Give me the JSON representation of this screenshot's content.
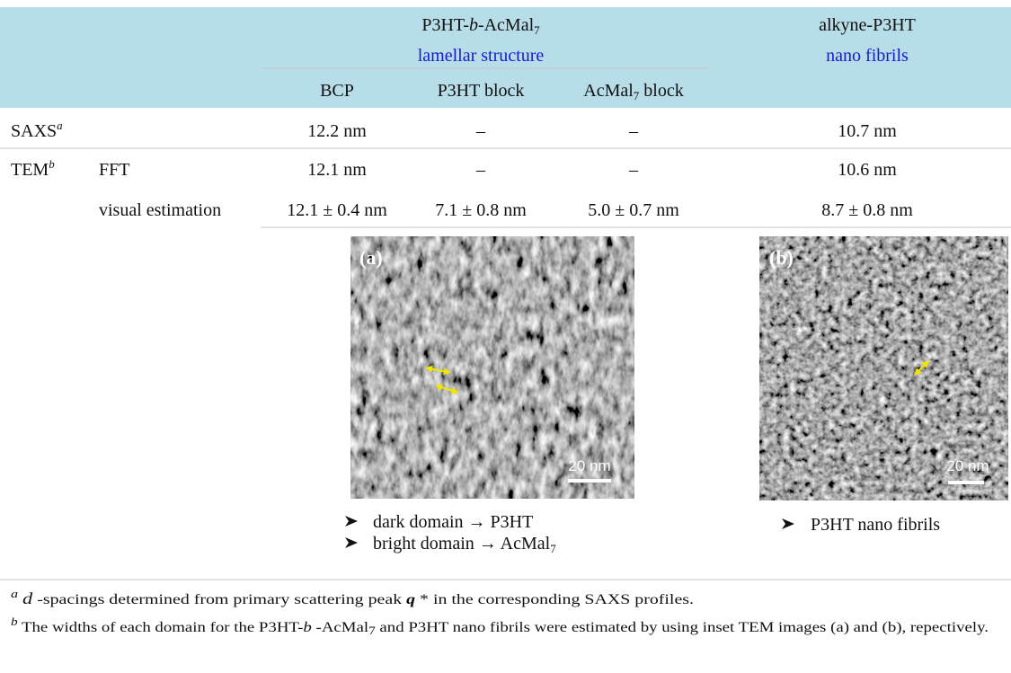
{
  "header": {
    "group_a": {
      "title": [
        "P3HT-",
        "b",
        "-AcMal",
        "7"
      ],
      "subtitle": "lamellar structure",
      "columns": [
        [
          "BCP"
        ],
        [
          "P3HT block"
        ],
        [
          "AcMal",
          "7",
          " block"
        ]
      ]
    },
    "group_b": {
      "title": "alkyne-P3HT",
      "subtitle": "nano fibrils"
    }
  },
  "rows": [
    {
      "label": [
        "SAXS",
        "a"
      ],
      "cells": [
        "12.2 nm",
        "–",
        "–",
        "10.7 nm"
      ]
    },
    {
      "label": [
        "TEM",
        "b"
      ],
      "sublabel": "FFT",
      "cells": [
        "12.1 nm",
        "–",
        "–",
        "10.6 nm"
      ]
    },
    {
      "sublabel": "visual estimation",
      "cells": [
        "12.1 ± 0.4 nm",
        "7.1 ± 0.8 nm",
        "5.0 ± 0.7 nm",
        "8.7 ± 0.8 nm"
      ]
    }
  ],
  "images": [
    {
      "label": "(a)",
      "scale": "20 nm",
      "bullets": [
        [
          "dark domain → P3HT"
        ],
        [
          "bright domain → AcMal",
          "7"
        ]
      ]
    },
    {
      "label": "(b)",
      "scale": "20 nm",
      "bullets": [
        [
          "P3HT nano fibrils"
        ]
      ]
    }
  ],
  "footnotes": [
    [
      "a",
      " ",
      "d",
      " -spacings determined from primary scattering peak ",
      "q",
      " * in the corresponding SAXS profiles."
    ],
    [
      "b",
      " The widths of each domain for the P3HT-",
      "b",
      " -AcMal",
      "7",
      " and P3HT nano fibrils were estimated by using inset TEM images (a) and (b), repectively."
    ]
  ]
}
